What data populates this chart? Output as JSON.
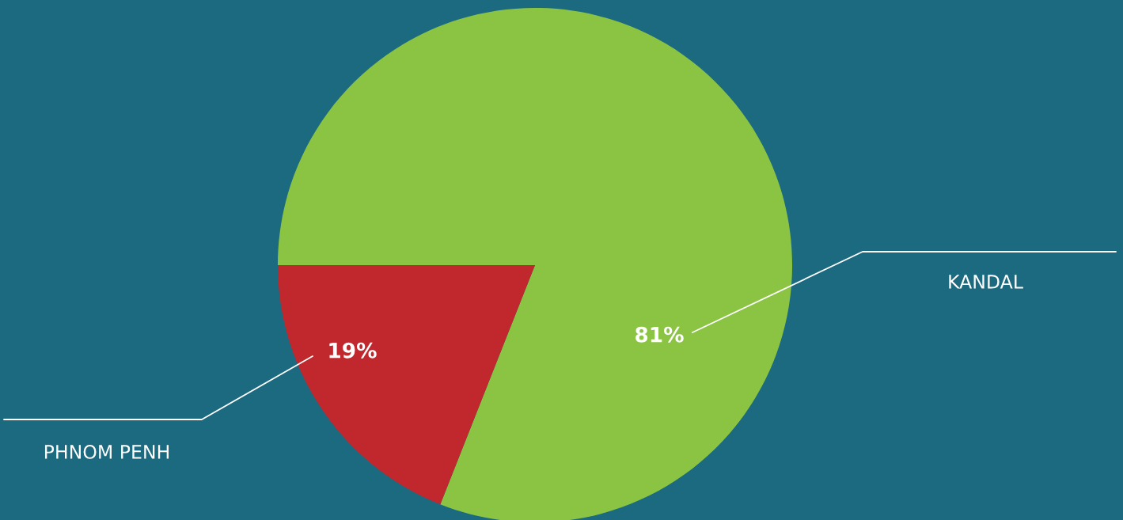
{
  "chart_data": {
    "type": "pie",
    "categories": [
      "KANDAL",
      "PHNOM PENH"
    ],
    "values": [
      81,
      19
    ],
    "colors": [
      "#8bc443",
      "#c0282d"
    ],
    "value_labels": [
      "81%",
      "19%"
    ]
  }
}
